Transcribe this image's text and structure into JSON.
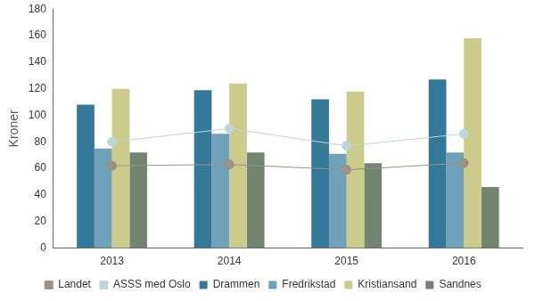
{
  "chart_data": {
    "type": "bar",
    "y_label": "Kroner",
    "categories": [
      "2013",
      "2014",
      "2015",
      "2016"
    ],
    "series": [
      {
        "name": "Drammen",
        "type": "bar",
        "color": "#35799a",
        "values": [
          108,
          119,
          112,
          127
        ]
      },
      {
        "name": "Fredrikstad",
        "type": "bar",
        "color": "#6fa1b8",
        "values": [
          75,
          86,
          71,
          72
        ]
      },
      {
        "name": "Kristiansand",
        "type": "bar",
        "color": "#cbcc8b",
        "values": [
          120,
          124,
          118,
          158
        ]
      },
      {
        "name": "Sandnes",
        "type": "bar",
        "color": "#738570",
        "values": [
          72,
          72,
          64,
          46
        ]
      },
      {
        "name": "Landet",
        "type": "line",
        "marker": "circle",
        "color": "#9b9185",
        "values": [
          62,
          63,
          59,
          64
        ]
      },
      {
        "name": "ASSS med Oslo",
        "type": "line",
        "marker": "circle",
        "color": "#bcd6d8",
        "values": [
          80,
          90,
          77,
          86
        ]
      }
    ],
    "ylim": [
      0,
      180
    ],
    "yticks": [
      0,
      20,
      40,
      60,
      80,
      100,
      120,
      140,
      160,
      180
    ],
    "grid": false,
    "legend": "bottom"
  }
}
